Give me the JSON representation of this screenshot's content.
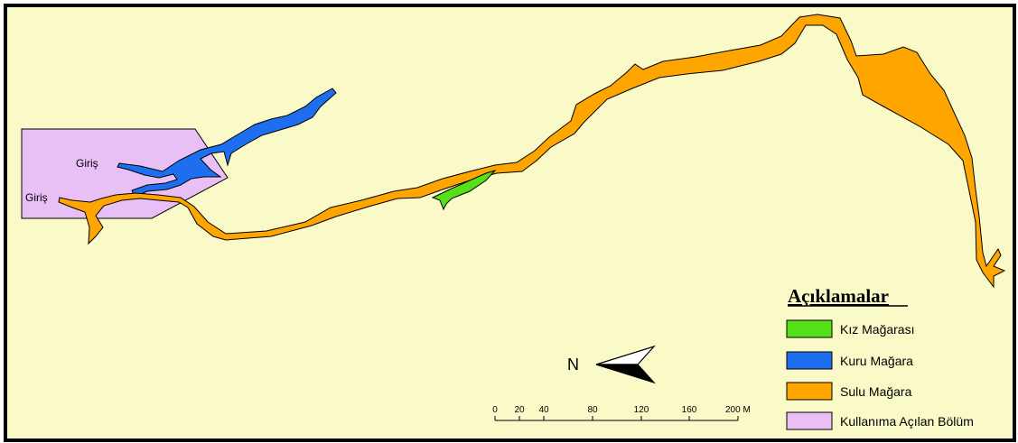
{
  "map": {
    "background_color": "#FAFAC8",
    "entrance_labels": [
      "Giriş",
      "Giriş"
    ]
  },
  "legend": {
    "title": "Açıklamalar",
    "items": [
      {
        "label": "Kız Mağarası",
        "color": "#55E01A"
      },
      {
        "label": "Kuru Mağara",
        "color": "#1E6EF0"
      },
      {
        "label": "Sulu Mağara",
        "color": "#FFA500"
      },
      {
        "label": "Kullanıma Açılan Bölüm",
        "color": "#E8C0F5"
      }
    ]
  },
  "north_arrow": {
    "label": "N",
    "icon": "north-arrow-icon"
  },
  "scale_bar": {
    "ticks": [
      "0",
      "20",
      "40",
      "80",
      "120",
      "160",
      "200 M"
    ]
  }
}
